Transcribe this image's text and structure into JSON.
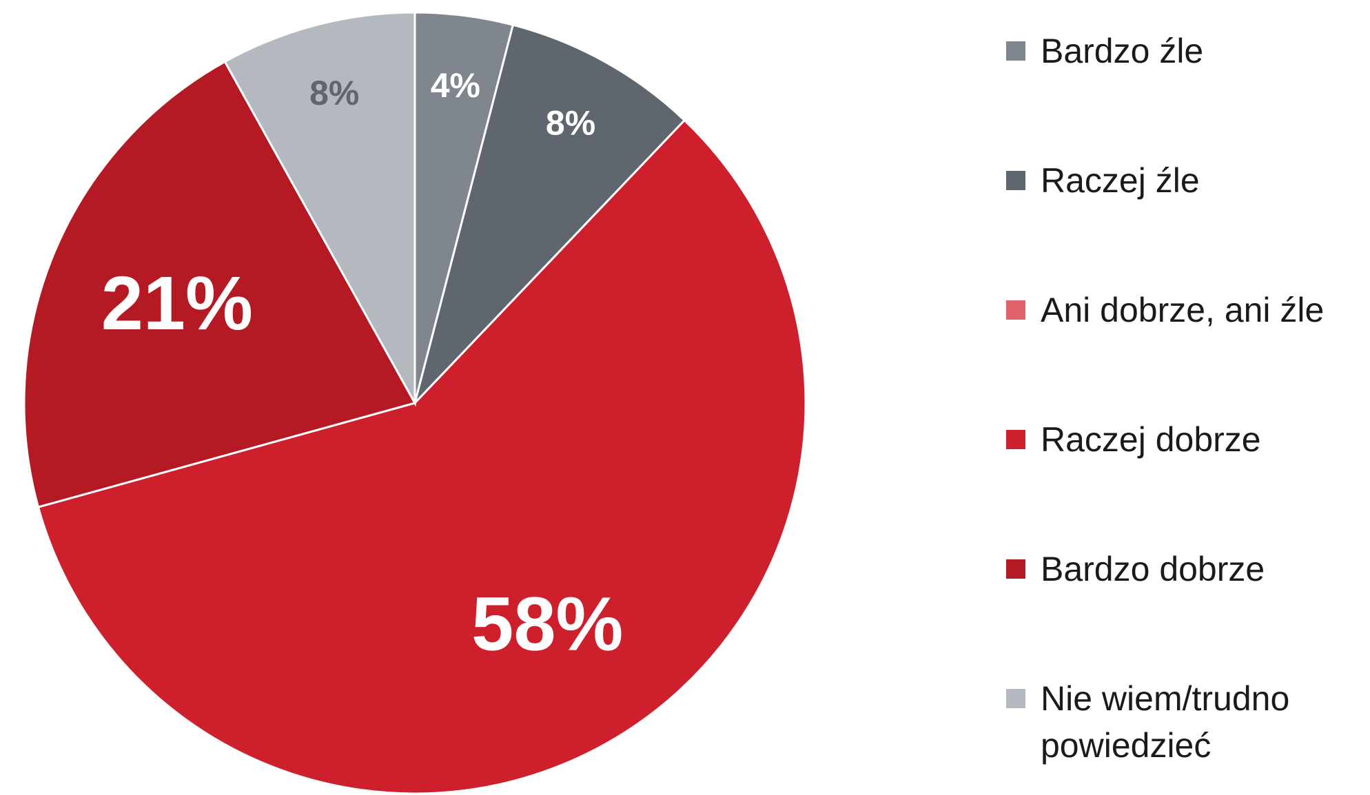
{
  "chart_data": {
    "type": "pie",
    "start_angle_deg": 0,
    "direction": "clockwise",
    "slices": [
      {
        "label": "Bardzo źle",
        "value": 4,
        "display": "4%",
        "color": "#7f868e",
        "text_color": "#ffffff",
        "label_size": 50
      },
      {
        "label": "Raczej źle",
        "value": 8,
        "display": "8%",
        "color": "#5f666e",
        "text_color": "#ffffff",
        "label_size": 50
      },
      {
        "label": "Ani dobrze, ani źle",
        "value": 0,
        "display": "",
        "color": "#e0626b",
        "text_color": "#ffffff",
        "label_size": 50
      },
      {
        "label": "Raczej dobrze",
        "value": 58,
        "display": "58%",
        "color": "#cd1f2c",
        "text_color": "#ffffff",
        "label_size": 110
      },
      {
        "label": "Bardzo dobrze",
        "value": 21,
        "display": "21%",
        "color": "#b51a24",
        "text_color": "#ffffff",
        "label_size": 110
      },
      {
        "label": "Nie wiem/trudno powiedzieć",
        "value": 8,
        "display": "8%",
        "color": "#b4b9bf",
        "text_color": "#5f666e",
        "label_size": 50
      }
    ],
    "legend": {
      "position": "right",
      "items": [
        {
          "line1": "Bardzo źle",
          "line2": "",
          "color": "#7f868e"
        },
        {
          "line1": "Raczej źle",
          "line2": "",
          "color": "#5f666e"
        },
        {
          "line1": "Ani dobrze, ani źle",
          "line2": "",
          "color": "#e0626b"
        },
        {
          "line1": "Raczej dobrze",
          "line2": "",
          "color": "#cd1f2c"
        },
        {
          "line1": "Bardzo dobrze",
          "line2": "",
          "color": "#b51a24"
        },
        {
          "line1": "Nie wiem/trudno",
          "line2": "powiedzieć",
          "color": "#b4b9bf"
        }
      ]
    }
  }
}
